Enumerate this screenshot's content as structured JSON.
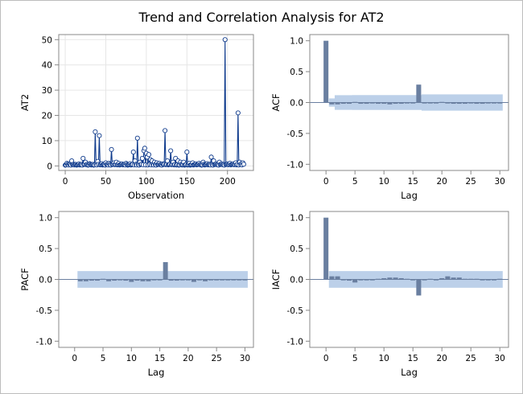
{
  "title": "Trend and Correlation Analysis for AT2",
  "colors": {
    "series": "#0e3a8c",
    "bar": "#6a7fa0",
    "band": "#b8cde8",
    "grid": "#e6e6e6",
    "axis": "#888888",
    "frame": "#bdbdbd",
    "zero": "#6a7fa0"
  },
  "chart_data": [
    {
      "type": "line",
      "panel": "trend",
      "xlabel": "Observation",
      "ylabel": "AT2",
      "xlim": [
        -8,
        232
      ],
      "ylim": [
        -1.8,
        52
      ],
      "xticks": [
        0,
        50,
        100,
        150,
        200
      ],
      "yticks": [
        0,
        10,
        20,
        30,
        40,
        50
      ],
      "grid": true,
      "markers": "open-circle",
      "n": 221,
      "baseline": 0.3,
      "spikes": [
        {
          "x": 2,
          "y": 1.0
        },
        {
          "x": 5,
          "y": 0.8
        },
        {
          "x": 8,
          "y": 2.0
        },
        {
          "x": 12,
          "y": 0.6
        },
        {
          "x": 17,
          "y": 0.8
        },
        {
          "x": 22,
          "y": 3.0
        },
        {
          "x": 25,
          "y": 1.5
        },
        {
          "x": 30,
          "y": 0.9
        },
        {
          "x": 37,
          "y": 13.5
        },
        {
          "x": 40,
          "y": 1.8
        },
        {
          "x": 42,
          "y": 12.0
        },
        {
          "x": 45,
          "y": 0.9
        },
        {
          "x": 50,
          "y": 1.2
        },
        {
          "x": 54,
          "y": 1.0
        },
        {
          "x": 57,
          "y": 6.5
        },
        {
          "x": 60,
          "y": 1.2
        },
        {
          "x": 63,
          "y": 1.5
        },
        {
          "x": 66,
          "y": 1.0
        },
        {
          "x": 70,
          "y": 0.8
        },
        {
          "x": 75,
          "y": 1.0
        },
        {
          "x": 80,
          "y": 0.9
        },
        {
          "x": 84,
          "y": 5.5
        },
        {
          "x": 86,
          "y": 2.0
        },
        {
          "x": 89,
          "y": 11.0
        },
        {
          "x": 92,
          "y": 1.5
        },
        {
          "x": 95,
          "y": 3.0
        },
        {
          "x": 97,
          "y": 6.0
        },
        {
          "x": 98,
          "y": 7.0
        },
        {
          "x": 100,
          "y": 5.0
        },
        {
          "x": 101,
          "y": 3.5
        },
        {
          "x": 103,
          "y": 4.5
        },
        {
          "x": 105,
          "y": 2.5
        },
        {
          "x": 107,
          "y": 2.0
        },
        {
          "x": 110,
          "y": 1.5
        },
        {
          "x": 113,
          "y": 1.2
        },
        {
          "x": 116,
          "y": 1.0
        },
        {
          "x": 120,
          "y": 0.8
        },
        {
          "x": 123,
          "y": 14.0
        },
        {
          "x": 126,
          "y": 2.0
        },
        {
          "x": 130,
          "y": 6.0
        },
        {
          "x": 133,
          "y": 1.5
        },
        {
          "x": 136,
          "y": 3.0
        },
        {
          "x": 139,
          "y": 2.0
        },
        {
          "x": 142,
          "y": 1.5
        },
        {
          "x": 146,
          "y": 1.5
        },
        {
          "x": 150,
          "y": 5.5
        },
        {
          "x": 153,
          "y": 1.0
        },
        {
          "x": 157,
          "y": 1.2
        },
        {
          "x": 161,
          "y": 0.8
        },
        {
          "x": 165,
          "y": 1.0
        },
        {
          "x": 170,
          "y": 1.5
        },
        {
          "x": 175,
          "y": 0.9
        },
        {
          "x": 180,
          "y": 3.5
        },
        {
          "x": 183,
          "y": 2.0
        },
        {
          "x": 186,
          "y": 0.8
        },
        {
          "x": 190,
          "y": 1.5
        },
        {
          "x": 193,
          "y": 0.8
        },
        {
          "x": 197,
          "y": 50.0
        },
        {
          "x": 200,
          "y": 0.8
        },
        {
          "x": 203,
          "y": 1.0
        },
        {
          "x": 207,
          "y": 0.8
        },
        {
          "x": 210,
          "y": 1.2
        },
        {
          "x": 213,
          "y": 21.0
        },
        {
          "x": 215,
          "y": 1.5
        },
        {
          "x": 217,
          "y": 0.9
        },
        {
          "x": 219,
          "y": 1.2
        }
      ]
    },
    {
      "type": "bar",
      "panel": "acf",
      "xlabel": "Lag",
      "ylabel": "ACF",
      "xlim": [
        -2.8,
        31.5
      ],
      "ylim": [
        -1.1,
        1.1
      ],
      "xticks": [
        0,
        5,
        10,
        15,
        20,
        25,
        30
      ],
      "yticks": [
        -1.0,
        -0.5,
        0.0,
        0.5,
        1.0
      ],
      "tick_labels": [
        "-1.0",
        "-0.5",
        "0.0",
        "0.5",
        "1.0"
      ],
      "lags": [
        0,
        1,
        2,
        3,
        4,
        5,
        6,
        7,
        8,
        9,
        10,
        11,
        12,
        13,
        14,
        15,
        16,
        17,
        18,
        19,
        20,
        21,
        22,
        23,
        24,
        25,
        26,
        27,
        28,
        29,
        30
      ],
      "values": [
        1.0,
        -0.03,
        -0.03,
        -0.02,
        -0.02,
        0.01,
        -0.02,
        -0.02,
        -0.01,
        -0.02,
        -0.02,
        -0.03,
        -0.02,
        -0.02,
        -0.01,
        -0.01,
        0.29,
        -0.01,
        -0.01,
        -0.01,
        0.01,
        -0.01,
        -0.02,
        -0.02,
        -0.02,
        -0.01,
        -0.02,
        -0.02,
        -0.01,
        -0.01,
        -0.01
      ],
      "band": [
        0.0,
        0.067,
        0.118,
        0.119,
        0.119,
        0.12,
        0.12,
        0.12,
        0.12,
        0.12,
        0.12,
        0.12,
        0.12,
        0.12,
        0.12,
        0.12,
        0.12,
        0.131,
        0.131,
        0.131,
        0.131,
        0.131,
        0.131,
        0.131,
        0.131,
        0.131,
        0.131,
        0.131,
        0.131,
        0.131,
        0.131
      ]
    },
    {
      "type": "bar",
      "panel": "pacf",
      "xlabel": "Lag",
      "ylabel": "PACF",
      "xlim": [
        -2.8,
        31.5
      ],
      "ylim": [
        -1.1,
        1.1
      ],
      "xticks": [
        0,
        5,
        10,
        15,
        20,
        25,
        30
      ],
      "yticks": [
        -1.0,
        -0.5,
        0.0,
        0.5,
        1.0
      ],
      "tick_labels": [
        "-1.0",
        "-0.5",
        "0.0",
        "0.5",
        "1.0"
      ],
      "lags": [
        1,
        2,
        3,
        4,
        5,
        6,
        7,
        8,
        9,
        10,
        11,
        12,
        13,
        14,
        15,
        16,
        17,
        18,
        19,
        20,
        21,
        22,
        23,
        24,
        25,
        26,
        27,
        28,
        29,
        30
      ],
      "values": [
        -0.03,
        -0.03,
        -0.02,
        -0.02,
        0.01,
        -0.03,
        -0.02,
        -0.01,
        -0.02,
        -0.04,
        -0.02,
        -0.03,
        -0.03,
        -0.01,
        -0.01,
        0.28,
        -0.02,
        -0.02,
        -0.01,
        -0.01,
        -0.04,
        -0.01,
        -0.03,
        -0.01,
        -0.01,
        -0.01,
        -0.01,
        -0.01,
        -0.01,
        -0.01
      ],
      "band": [
        0.135,
        0.135,
        0.135,
        0.135,
        0.135,
        0.135,
        0.135,
        0.135,
        0.135,
        0.135,
        0.135,
        0.135,
        0.135,
        0.135,
        0.135,
        0.135,
        0.135,
        0.135,
        0.135,
        0.135,
        0.135,
        0.135,
        0.135,
        0.135,
        0.135,
        0.135,
        0.135,
        0.135,
        0.135,
        0.135
      ]
    },
    {
      "type": "bar",
      "panel": "iacf",
      "xlabel": "Lag",
      "ylabel": "IACF",
      "xlim": [
        -2.8,
        31.5
      ],
      "ylim": [
        -1.1,
        1.1
      ],
      "xticks": [
        0,
        5,
        10,
        15,
        20,
        25,
        30
      ],
      "yticks": [
        -1.0,
        -0.5,
        0.0,
        0.5,
        1.0
      ],
      "tick_labels": [
        "-1.0",
        "-0.5",
        "0.0",
        "0.5",
        "1.0"
      ],
      "lags": [
        0,
        1,
        2,
        3,
        4,
        5,
        6,
        7,
        8,
        9,
        10,
        11,
        12,
        13,
        14,
        15,
        16,
        17,
        18,
        19,
        20,
        21,
        22,
        23,
        24,
        25,
        26,
        27,
        28,
        29,
        30
      ],
      "values": [
        1.0,
        0.05,
        0.05,
        0.0,
        -0.02,
        -0.05,
        -0.01,
        -0.01,
        0.0,
        0.01,
        0.02,
        0.03,
        0.03,
        0.02,
        0.01,
        0.0,
        -0.26,
        0.0,
        0.01,
        0.0,
        0.02,
        0.05,
        0.03,
        0.03,
        0.01,
        0.01,
        0.01,
        0.0,
        0.0,
        0.0,
        0.01
      ],
      "band": [
        0.0,
        0.135,
        0.135,
        0.135,
        0.135,
        0.135,
        0.135,
        0.135,
        0.135,
        0.135,
        0.135,
        0.135,
        0.135,
        0.135,
        0.135,
        0.135,
        0.135,
        0.135,
        0.135,
        0.135,
        0.135,
        0.135,
        0.135,
        0.135,
        0.135,
        0.135,
        0.135,
        0.135,
        0.135,
        0.135,
        0.135
      ]
    }
  ]
}
